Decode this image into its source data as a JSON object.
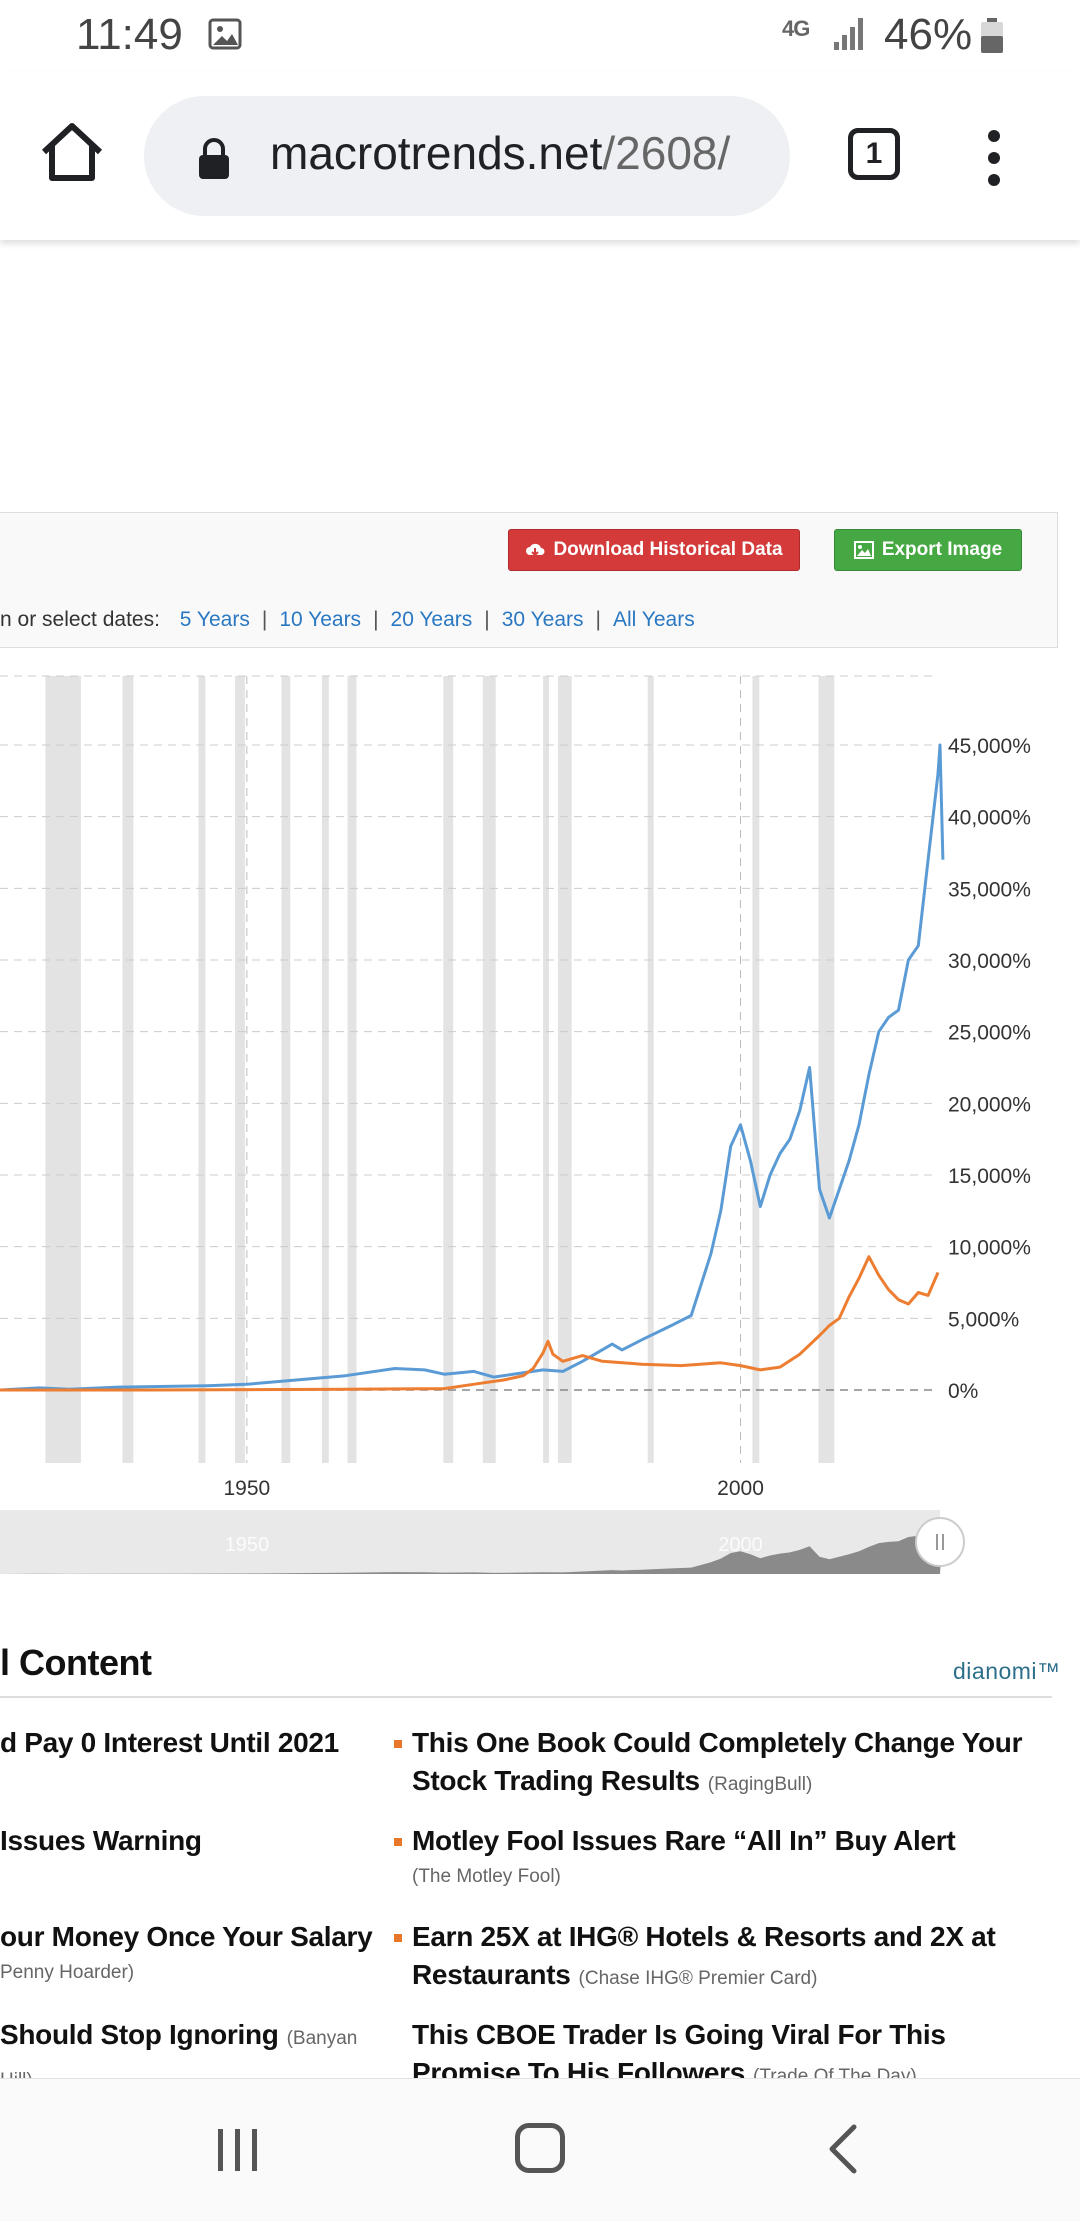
{
  "status_bar": {
    "time": "11:49",
    "network": "4G",
    "battery_pct": "46%"
  },
  "browser": {
    "url_host": "macrotrends.net",
    "url_path": "/2608/",
    "tab_count": "1"
  },
  "panel": {
    "download_label": "Download Historical Data",
    "export_label": "Export Image",
    "dates_prefix": "n or select dates:",
    "date_links": [
      "5 Years",
      "10 Years",
      "20 Years",
      "30 Years",
      "All Years"
    ]
  },
  "chart_data": {
    "type": "line",
    "x_range": [
      1925,
      2020
    ],
    "ylim": [
      -2500,
      50000
    ],
    "y_ticks": [
      0,
      5000,
      10000,
      15000,
      20000,
      25000,
      30000,
      35000,
      40000,
      45000
    ],
    "y_tick_labels": [
      "0%",
      "5,000%",
      "10,000%",
      "15,000%",
      "20,000%",
      "25,000%",
      "30,000%",
      "35,000%",
      "40,000%",
      "45,000%"
    ],
    "x_tick_labels": [
      "1950",
      "2000"
    ],
    "x_tick_values": [
      1950,
      2000
    ],
    "grid": true,
    "colors": {
      "series_1": "#5b9bd5",
      "series_2": "#ed7d31",
      "recession": "#d9d9d9"
    },
    "recessions": [
      [
        1929.6,
        1933.2
      ],
      [
        1937.4,
        1938.5
      ],
      [
        1945.1,
        1945.8
      ],
      [
        1948.8,
        1949.8
      ],
      [
        1953.5,
        1954.4
      ],
      [
        1957.6,
        1958.3
      ],
      [
        1960.2,
        1961.1
      ],
      [
        1969.9,
        1970.9
      ],
      [
        1973.9,
        1975.2
      ],
      [
        1980.0,
        1980.5
      ],
      [
        1981.5,
        1982.9
      ],
      [
        1990.6,
        1991.2
      ],
      [
        2001.2,
        2001.9
      ],
      [
        2007.9,
        2009.5
      ]
    ],
    "series": [
      {
        "x": [
          1925,
          1929,
          1932,
          1937,
          1942,
          1946,
          1950,
          1955,
          1960,
          1965,
          1968,
          1970,
          1973,
          1975,
          1980,
          1982,
          1984,
          1987,
          1988,
          1990,
          1993,
          1995,
          1997,
          1998,
          1999,
          2000,
          2001,
          2002,
          2003,
          2004,
          2005,
          2006,
          2007,
          2008,
          2009,
          2010,
          2011,
          2012,
          2013,
          2014,
          2015,
          2016,
          2017,
          2018,
          2019,
          2020,
          2020.2,
          2020.5
        ],
        "values": [
          0,
          150,
          50,
          200,
          250,
          300,
          400,
          700,
          1000,
          1500,
          1400,
          1100,
          1300,
          900,
          1400,
          1300,
          2000,
          3200,
          2800,
          3500,
          4500,
          5200,
          9500,
          12500,
          17000,
          18500,
          16000,
          12800,
          15000,
          16500,
          17500,
          19500,
          22500,
          14000,
          12000,
          14000,
          16000,
          18500,
          22000,
          25000,
          26000,
          26500,
          30000,
          31000,
          37000,
          43000,
          45000,
          37000
        ]
      },
      {
        "x": [
          1925,
          1940,
          1960,
          1970,
          1972,
          1974,
          1976,
          1978,
          1979,
          1980,
          1980.5,
          1981,
          1982,
          1984,
          1986,
          1990,
          1994,
          1998,
          2000,
          2002,
          2004,
          2006,
          2008,
          2009,
          2010,
          2011,
          2012,
          2013,
          2014,
          2015,
          2016,
          2017,
          2018,
          2019,
          2020
        ],
        "values": [
          0,
          0,
          50,
          100,
          300,
          500,
          700,
          1000,
          1500,
          2600,
          3400,
          2500,
          2000,
          2400,
          2000,
          1800,
          1700,
          1900,
          1700,
          1400,
          1600,
          2500,
          3800,
          4500,
          5000,
          6500,
          7800,
          9300,
          8000,
          7000,
          6300,
          6000,
          6800,
          6600,
          8200
        ]
      }
    ],
    "navigator_labels": [
      "1950",
      "2000"
    ]
  },
  "sponsored": {
    "title": "l Content",
    "brand": "dianomi™",
    "left_items": [
      {
        "text": "d Pay 0 Interest Until 2021",
        "source": ""
      },
      {
        "text": "Issues Warning",
        "source": ""
      },
      {
        "text": "our Money Once Your Salary",
        "source": "Penny Hoarder)"
      },
      {
        "text": "Should Stop Ignoring",
        "source": "(Banyan Hill)"
      }
    ],
    "right_items": [
      {
        "text": "This One Book Could Completely Change Your Stock Trading Results",
        "source": "(RagingBull)"
      },
      {
        "text": "Motley Fool Issues Rare “All In” Buy Alert",
        "source": "(The Motley Fool)"
      },
      {
        "text": "Earn 25X at IHG® Hotels & Resorts and 2X at Restaurants",
        "source": "(Chase IHG® Premier Card)"
      },
      {
        "text": "This CBOE Trader Is Going Viral For This Promise To His Followers",
        "source": "(Trade Of The Day)"
      }
    ]
  }
}
